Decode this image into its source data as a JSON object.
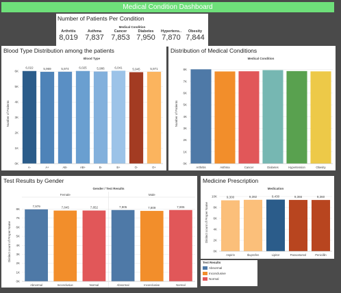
{
  "dashboard": {
    "title": "Medical Condition Dashboard",
    "title_bar_color": "#6ee07a"
  },
  "kpi": {
    "title": "Number of Patients Per Condition",
    "header": "Medical Condition",
    "items": [
      {
        "name": "Arthritis",
        "value": "8,019"
      },
      {
        "name": "Asthma",
        "value": "7,837"
      },
      {
        "name": "Cancer",
        "value": "7,853"
      },
      {
        "name": "Diabetes",
        "value": "7,950"
      },
      {
        "name": "Hypertens..",
        "value": "7,870"
      },
      {
        "name": "Obesity",
        "value": "7,844"
      }
    ]
  },
  "chart_data": [
    {
      "id": "blood",
      "type": "bar",
      "title": "Blood Type Distribution among the patients",
      "header": "Blood Type",
      "ylabel": "Number of Patients",
      "ylim": [
        0,
        6500
      ],
      "yticks": [
        0,
        1000,
        2000,
        3000,
        4000,
        5000,
        6000
      ],
      "ytick_labels": [
        "0K",
        "1K",
        "2K",
        "3K",
        "4K",
        "5K",
        "6K"
      ],
      "categories": [
        "A-",
        "A+",
        "AB-",
        "AB+",
        "B-",
        "B+",
        "O-",
        "O+"
      ],
      "values": [
        6022,
        5969,
        5974,
        6025,
        5986,
        6041,
        5945,
        5971
      ],
      "labels": [
        "6,022",
        "5,969",
        "5,974",
        "6,025",
        "5,986",
        "6,041",
        "5,945",
        "5,971"
      ],
      "colors": [
        "#2b5c8a",
        "#4e83b8",
        "#5a8fc4",
        "#6a9fd0",
        "#82b0dc",
        "#9cc3e8",
        "#a33b22",
        "#fbb45e"
      ]
    },
    {
      "id": "cond",
      "type": "bar",
      "title": "Distribution of Medical Conditions",
      "header": "Medical Condition",
      "ylabel": "Number of Patients",
      "ylim": [
        0,
        8500
      ],
      "yticks": [
        0,
        1000,
        2000,
        3000,
        4000,
        5000,
        6000,
        7000,
        8000
      ],
      "ytick_labels": [
        "0K",
        "1K",
        "2K",
        "3K",
        "4K",
        "5K",
        "6K",
        "7K",
        "8K"
      ],
      "categories": [
        "Arthritis",
        "Asthma",
        "Cancer",
        "Diabetes",
        "Hypertension",
        "Obesity"
      ],
      "values": [
        8019,
        7837,
        7853,
        7950,
        7870,
        7844
      ],
      "labels": [],
      "colors": [
        "#4e79a7",
        "#f28e2b",
        "#e15759",
        "#76b7b2",
        "#59a14f",
        "#edc948"
      ]
    },
    {
      "id": "gender",
      "type": "bar",
      "title": "Test Results by Gender",
      "header": "Gender / Test Results",
      "groups": [
        "Female",
        "Male"
      ],
      "ylabel": "Distinct count of Proper Name",
      "ylim": [
        0,
        8800
      ],
      "yticks": [
        0,
        1000,
        2000,
        3000,
        4000,
        5000,
        6000,
        7000,
        8000
      ],
      "ytick_labels": [
        "0K",
        "1K",
        "2K",
        "3K",
        "4K",
        "5K",
        "6K",
        "7K",
        "8K"
      ],
      "categories": [
        "Abnormal",
        "Inconclusive",
        "Normal",
        "Abnormal",
        "Inconclusive",
        "Normal"
      ],
      "values": [
        7979,
        7845,
        7852,
        7905,
        7809,
        7906
      ],
      "labels": [
        "7,979",
        "7,845",
        "7,852",
        "7,905",
        "7,809",
        "7,906"
      ],
      "colors": [
        "#4e79a7",
        "#f28e2b",
        "#e15759",
        "#4e79a7",
        "#f28e2b",
        "#e15759"
      ]
    },
    {
      "id": "med",
      "type": "bar",
      "title": "Medicine Prescription",
      "header": "Medication",
      "ylabel": "Distinct count of Proper Name",
      "ylim": [
        0,
        10500
      ],
      "yticks": [
        0,
        2000,
        4000,
        6000,
        8000,
        10000
      ],
      "ytick_labels": [
        "0K",
        "2K",
        "4K",
        "6K",
        "8K",
        "10K"
      ],
      "categories": [
        "Aspirin",
        "Ibuprofen",
        "Lipitor",
        "Paracetamol",
        "Penicillin"
      ],
      "values": [
        9300,
        9392,
        9430,
        9366,
        9360
      ],
      "labels": [
        "9,300",
        "9,392",
        "9,430",
        "9,366",
        "9,360"
      ],
      "colors": [
        "#fbbf7a",
        "#fbbf7a",
        "#2b5c8a",
        "#b8451f",
        "#b8451f"
      ]
    }
  ],
  "legend": {
    "title": "Test Results",
    "items": [
      {
        "label": "Abnormal",
        "color": "#4e79a7"
      },
      {
        "label": "Inconclusive",
        "color": "#f28e2b"
      },
      {
        "label": "Normal",
        "color": "#e15759"
      }
    ]
  }
}
